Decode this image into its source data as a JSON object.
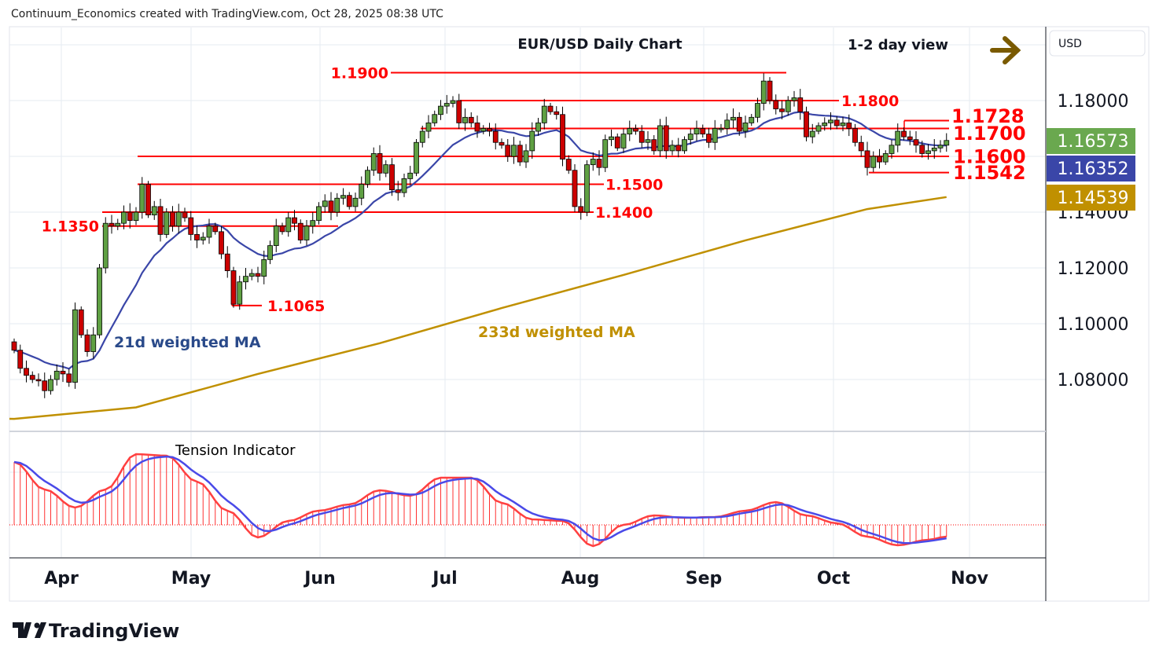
{
  "header": {
    "credit": "Continuum_Economics created with TradingView.com, Oct 28, 2025 08:38 UTC"
  },
  "brand": {
    "logo_text": "TradingView"
  },
  "currency_label": "USD",
  "chart_data": {
    "type": "candlestick",
    "title": "EUR/USD Daily Chart",
    "subtitle": "1-2 day view",
    "view_direction": "right-arrow",
    "ylim": [
      1.063,
      1.203
    ],
    "y_ticks": [
      "1.18000",
      "1.14000",
      "1.12000",
      "1.10000",
      "1.08000"
    ],
    "x_ticks": [
      "Apr",
      "May",
      "Jun",
      "Jul",
      "Aug",
      "Sep",
      "Oct",
      "Nov"
    ],
    "grid": true,
    "closes": [
      1.0905,
      1.084,
      1.0815,
      1.08,
      1.0795,
      1.076,
      1.08,
      1.083,
      1.082,
      1.079,
      1.105,
      1.096,
      1.09,
      1.096,
      1.12,
      1.136,
      1.135,
      1.136,
      1.14,
      1.137,
      1.14,
      1.15,
      1.139,
      1.142,
      1.132,
      1.14,
      1.135,
      1.14,
      1.138,
      1.132,
      1.13,
      1.131,
      1.135,
      1.133,
      1.125,
      1.119,
      1.107,
      1.115,
      1.117,
      1.118,
      1.117,
      1.123,
      1.128,
      1.135,
      1.133,
      1.138,
      1.136,
      1.13,
      1.135,
      1.137,
      1.142,
      1.144,
      1.14,
      1.145,
      1.146,
      1.142,
      1.145,
      1.15,
      1.155,
      1.161,
      1.154,
      1.157,
      1.148,
      1.147,
      1.152,
      1.154,
      1.165,
      1.169,
      1.172,
      1.175,
      1.178,
      1.179,
      1.18,
      1.172,
      1.174,
      1.172,
      1.169,
      1.17,
      1.169,
      1.165,
      1.164,
      1.16,
      1.164,
      1.158,
      1.162,
      1.169,
      1.172,
      1.178,
      1.176,
      1.175,
      1.159,
      1.155,
      1.142,
      1.14,
      1.157,
      1.159,
      1.156,
      1.166,
      1.167,
      1.163,
      1.168,
      1.17,
      1.169,
      1.165,
      1.166,
      1.162,
      1.171,
      1.162,
      1.164,
      1.162,
      1.166,
      1.168,
      1.17,
      1.168,
      1.165,
      1.17,
      1.17,
      1.173,
      1.174,
      1.169,
      1.172,
      1.174,
      1.179,
      1.187,
      1.18,
      1.177,
      1.176,
      1.18,
      1.181,
      1.176,
      1.167,
      1.169,
      1.171,
      1.172,
      1.173,
      1.171,
      1.172,
      1.17,
      1.165,
      1.162,
      1.156,
      1.16,
      1.158,
      1.161,
      1.164,
      1.169,
      1.167,
      1.166,
      1.164,
      1.161,
      1.162,
      1.163,
      1.164,
      1.1657
    ],
    "ma233_samples": [
      [
        0,
        1.0659
      ],
      [
        20,
        1.07
      ],
      [
        40,
        1.082
      ],
      [
        60,
        1.093
      ],
      [
        80,
        1.1056
      ],
      [
        100,
        1.1175
      ],
      [
        120,
        1.1299
      ],
      [
        140,
        1.1411
      ],
      [
        153,
        1.1454
      ]
    ],
    "series_labels": {
      "ma21": "21d weighted MA",
      "ma233": "233d weighted MA"
    },
    "price_tags": [
      {
        "value": "1.16573",
        "color": "#6aa84f",
        "series": "last price"
      },
      {
        "value": "1.16352",
        "color": "#3a46a8",
        "series": "21d weighted MA"
      },
      {
        "value": "1.14539",
        "color": "#c09000",
        "series": "233d weighted MA"
      }
    ],
    "levels": [
      {
        "label": "1.1900",
        "value": 1.19
      },
      {
        "label": "1.1800",
        "value": 1.18
      },
      {
        "label": "1.1728",
        "value": 1.1728
      },
      {
        "label": "1.1700",
        "value": 1.17
      },
      {
        "label": "1.1600",
        "value": 1.16
      },
      {
        "label": "1.1542",
        "value": 1.1542
      },
      {
        "label": "1.1500",
        "value": 1.15
      },
      {
        "label": "1.1400",
        "value": 1.14
      },
      {
        "label": "1.1350",
        "value": 1.135
      },
      {
        "label": "1.1065",
        "value": 1.1065
      }
    ],
    "tension": {
      "title": "Tension Indicator",
      "samples": [
        [
          0,
          80
        ],
        [
          5,
          45
        ],
        [
          10,
          22
        ],
        [
          15,
          45
        ],
        [
          20,
          90
        ],
        [
          25,
          88
        ],
        [
          30,
          55
        ],
        [
          35,
          18
        ],
        [
          40,
          -16
        ],
        [
          45,
          5
        ],
        [
          50,
          18
        ],
        [
          55,
          26
        ],
        [
          60,
          44
        ],
        [
          65,
          37
        ],
        [
          70,
          60
        ],
        [
          75,
          60
        ],
        [
          80,
          28
        ],
        [
          85,
          7
        ],
        [
          90,
          5
        ],
        [
          95,
          -27
        ],
        [
          100,
          0
        ],
        [
          105,
          12
        ],
        [
          110,
          9
        ],
        [
          115,
          10
        ],
        [
          120,
          18
        ],
        [
          125,
          29
        ],
        [
          130,
          12
        ],
        [
          135,
          2
        ],
        [
          140,
          -15
        ],
        [
          145,
          -26
        ],
        [
          150,
          -19
        ],
        [
          153,
          -15
        ]
      ]
    },
    "colors": {
      "up": "#5fa043",
      "down": "#cc0000",
      "ma21": "#3a46a8",
      "ma233": "#c09000",
      "level": "#ff0000"
    }
  }
}
